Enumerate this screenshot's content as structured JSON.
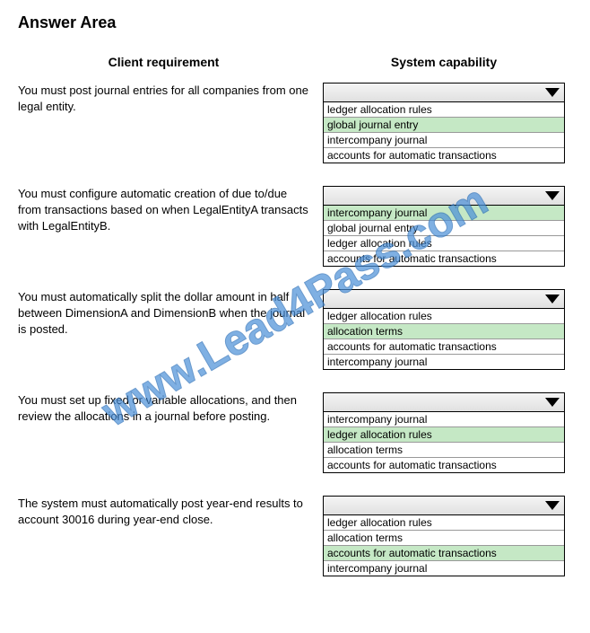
{
  "title": "Answer Area",
  "headers": {
    "left": "Client requirement",
    "right": "System capability"
  },
  "watermark": "www.Lead4Pass.com",
  "colors": {
    "highlight": "#c5e8c5",
    "dropdown_gradient_start": "#f5f5f5",
    "dropdown_gradient_end": "#e0e0e0",
    "watermark_color": "#4a8fd8",
    "border": "#000000"
  },
  "rows": [
    {
      "requirement": "You must post journal entries for all companies from one legal entity.",
      "options": [
        {
          "label": "ledger allocation rules",
          "highlighted": false
        },
        {
          "label": "global journal entry",
          "highlighted": true
        },
        {
          "label": "intercompany journal",
          "highlighted": false
        },
        {
          "label": "accounts for automatic transactions",
          "highlighted": false
        }
      ]
    },
    {
      "requirement": "You must configure automatic creation of due to/due from transactions based on when LegalEntityA transacts with LegalEntityB.",
      "options": [
        {
          "label": "intercompany journal",
          "highlighted": true
        },
        {
          "label": "global journal entry",
          "highlighted": false
        },
        {
          "label": "ledger allocation rules",
          "highlighted": false
        },
        {
          "label": "accounts for automatic transactions",
          "highlighted": false
        }
      ]
    },
    {
      "requirement": "You must automatically split the dollar amount in half between DimensionA and DimensionB when the journal is posted.",
      "options": [
        {
          "label": "ledger allocation rules",
          "highlighted": false
        },
        {
          "label": "allocation terms",
          "highlighted": true
        },
        {
          "label": "accounts for automatic transactions",
          "highlighted": false
        },
        {
          "label": "intercompany journal",
          "highlighted": false
        }
      ]
    },
    {
      "requirement": "You must set up fixed or variable allocations, and then review the allocations in a journal before posting.",
      "options": [
        {
          "label": "intercompany journal",
          "highlighted": false
        },
        {
          "label": "ledger allocation rules",
          "highlighted": true
        },
        {
          "label": "allocation terms",
          "highlighted": false
        },
        {
          "label": "accounts for automatic transactions",
          "highlighted": false
        }
      ]
    },
    {
      "requirement": "The system must automatically post year-end results to account 30016 during year-end close.",
      "options": [
        {
          "label": "ledger allocation rules",
          "highlighted": false
        },
        {
          "label": "allocation terms",
          "highlighted": false
        },
        {
          "label": "accounts for automatic transactions",
          "highlighted": true
        },
        {
          "label": "intercompany journal",
          "highlighted": false
        }
      ]
    }
  ]
}
